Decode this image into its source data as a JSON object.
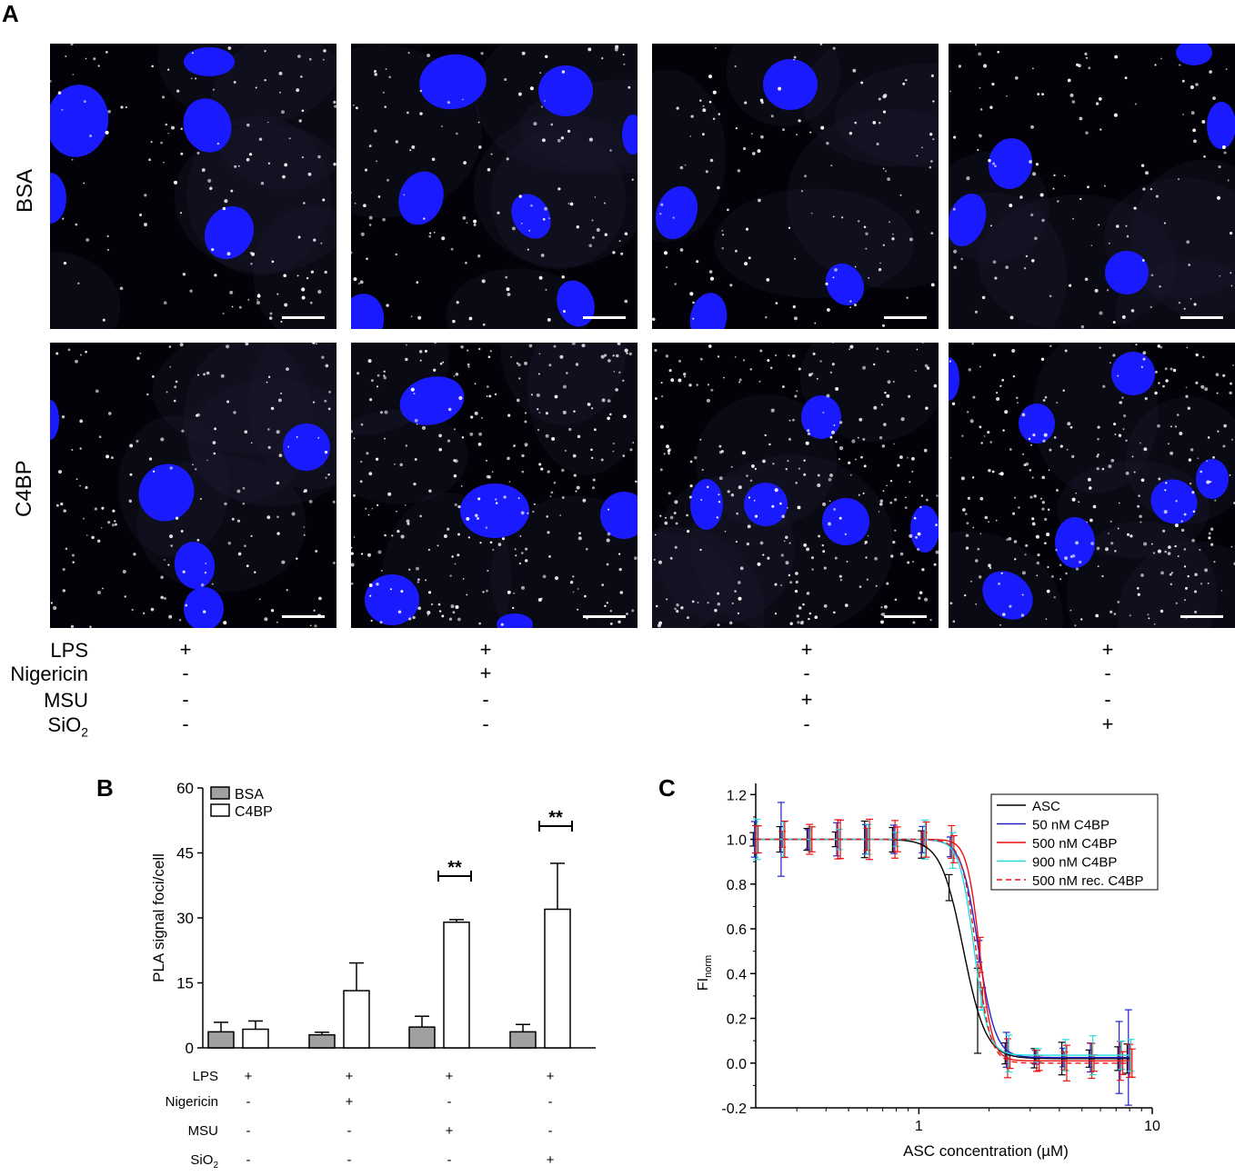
{
  "panel_a": {
    "letter": "A",
    "row_labels": [
      "BSA",
      "C4BP"
    ],
    "treatments": [
      {
        "label": "LPS",
        "values": [
          "+",
          "+",
          "+",
          "+"
        ]
      },
      {
        "label": "Nigericin",
        "values": [
          "-",
          "+",
          "-",
          "-"
        ]
      },
      {
        "label": "MSU",
        "values": [
          "-",
          "-",
          "+",
          "-"
        ]
      },
      {
        "label": "SiO",
        "sub": "2",
        "values": [
          "-",
          "-",
          "-",
          "+"
        ]
      }
    ],
    "colors": {
      "nucleus": "#1a1aff",
      "background": "#020208",
      "foci": "#ffffff"
    }
  },
  "panel_b": {
    "letter": "B",
    "treatments": [
      {
        "label": "LPS",
        "values": [
          "+",
          "+",
          "+",
          "+"
        ]
      },
      {
        "label": "Nigericin",
        "values": [
          "-",
          "+",
          "-",
          "-"
        ]
      },
      {
        "label": "MSU",
        "values": [
          "-",
          "-",
          "+",
          "-"
        ]
      },
      {
        "label": "SiO",
        "sub": "2",
        "values": [
          "-",
          "-",
          "-",
          "+"
        ]
      }
    ]
  },
  "panel_c": {
    "letter": "C"
  },
  "chart_data": [
    {
      "type": "bar",
      "ylabel": "PLA signal foci/cell",
      "ylim": [
        0,
        60
      ],
      "yticks": [
        0,
        15,
        30,
        45,
        60
      ],
      "legend": "top-left",
      "groups": 4,
      "series": [
        {
          "name": "BSA",
          "color": "#a0a0a0",
          "values": [
            3.7,
            3.0,
            4.8,
            3.7
          ],
          "errors": [
            2.2,
            0.6,
            2.5,
            1.7
          ]
        },
        {
          "name": "C4BP",
          "color": "#ffffff",
          "values": [
            4.3,
            13.2,
            29.0,
            32.0
          ],
          "errors": [
            1.9,
            6.4,
            0.6,
            10.6
          ]
        }
      ],
      "significance": [
        {
          "group": 3,
          "label": "**"
        },
        {
          "group": 4,
          "label": "**"
        }
      ]
    },
    {
      "type": "line",
      "xlabel": "ASC concentration (µM)",
      "ylabel": "FI",
      "ylabel_sub": "norm",
      "xscale": "log",
      "xlim": [
        0.2,
        10
      ],
      "ylim": [
        -0.2,
        1.25
      ],
      "xticks": [
        1,
        10
      ],
      "yticks": [
        -0.2,
        0.0,
        0.2,
        0.4,
        0.6,
        0.8,
        1.0,
        1.2
      ],
      "legend": "top-right",
      "x_points": [
        0.2,
        0.26,
        0.34,
        0.45,
        0.6,
        0.79,
        1.05,
        1.38,
        1.83,
        2.4,
        3.2,
        4.2,
        5.5,
        7.3,
        8.0
      ],
      "series": [
        {
          "name": "ASC",
          "color": "#000000",
          "dash": false,
          "ec50": 1.55,
          "hill": 9,
          "top": 1.0,
          "bottom": 0.02
        },
        {
          "name": "50 nM C4BP",
          "color": "#2222cc",
          "dash": false,
          "ec50": 1.8,
          "hill": 12,
          "top": 1.0,
          "bottom": 0.025
        },
        {
          "name": "500 nM C4BP",
          "color": "#ee1111",
          "dash": false,
          "ec50": 1.82,
          "hill": 16,
          "top": 1.0,
          "bottom": 0.01
        },
        {
          "name": "900 nM C4BP",
          "color": "#22dddd",
          "dash": false,
          "ec50": 1.72,
          "hill": 14,
          "top": 1.0,
          "bottom": 0.035
        },
        {
          "name": "500 nM rec. C4BP",
          "color": "#ee1111",
          "dash": true,
          "ec50": 1.76,
          "hill": 14,
          "top": 1.0,
          "bottom": 0.0
        }
      ]
    }
  ]
}
